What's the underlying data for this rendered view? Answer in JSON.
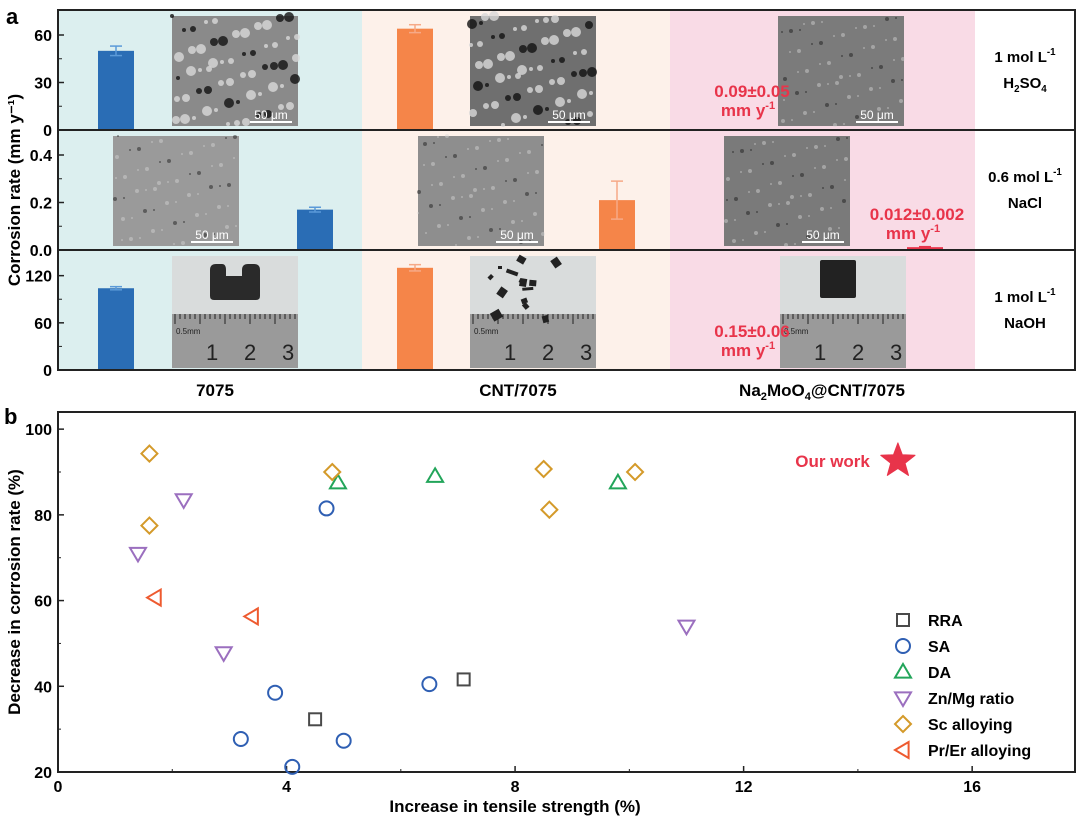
{
  "chart_data": [
    {
      "panel": "a",
      "type": "bar",
      "ylabel": "Corrosion rate (mm y⁻¹)",
      "categories": [
        "7075",
        "CNT/7075",
        "Na2MoO4@CNT/7075"
      ],
      "category_labels": [
        {
          "main": "7075"
        },
        {
          "main": "CNT/7075"
        },
        {
          "parts": [
            [
              "Na",
              ""
            ],
            [
              "2",
              "sub"
            ],
            [
              "MoO",
              ""
            ],
            [
              "4",
              "sub"
            ],
            [
              "@CNT/7075",
              ""
            ]
          ]
        }
      ],
      "band_colors": [
        "#dcefef",
        "#fdf1ea",
        "#f9dbe6",
        "#ffffff"
      ],
      "bar_colors": [
        "#2a6db5",
        "#f58549"
      ],
      "rows": [
        {
          "condition_line1": "1 mol L",
          "condition_line1_sup": "-1",
          "condition_line2_parts": [
            [
              "H",
              ""
            ],
            [
              "2",
              "sub"
            ],
            [
              "SO",
              ""
            ],
            [
              "4",
              "sub"
            ]
          ],
          "ylim": [
            0,
            72
          ],
          "yticks": [
            0,
            30,
            60
          ],
          "ytick_labels": [
            "0",
            "30",
            "60"
          ],
          "bars": [
            {
              "category": "7075",
              "value": 50,
              "error": 3
            },
            {
              "category": "CNT/7075",
              "value": 64,
              "error": 2.5
            }
          ],
          "annotation": {
            "category": "Na2MoO4@CNT/7075",
            "line1": "0.09±0.05",
            "line2": "mm y",
            "sup": "-1"
          },
          "sem_scale_labels": [
            "50 μm",
            "50 μm",
            "50 μm"
          ]
        },
        {
          "condition_line1": "0.6 mol L",
          "condition_line1_sup": "-1",
          "condition_line2_parts": [
            [
              "NaCl",
              ""
            ]
          ],
          "ylim": [
            0,
            0.48
          ],
          "yticks": [
            0,
            0.2,
            0.4
          ],
          "ytick_labels": [
            "0.0",
            "0.2",
            "0.4"
          ],
          "bars": [
            {
              "category": "7075",
              "value": 0.17,
              "error": 0.01
            },
            {
              "category": "CNT/7075",
              "value": 0.21,
              "error": 0.08
            },
            {
              "category": "Na2MoO4@CNT/7075",
              "value": 0.012,
              "error": 0.002
            }
          ],
          "annotation": {
            "category": "Na2MoO4@CNT/7075",
            "line1": "0.012±0.002",
            "line2": "mm y",
            "sup": "-1"
          },
          "sem_scale_labels": [
            "50 μm",
            "50 μm",
            "50 μm"
          ]
        },
        {
          "condition_line1": "1 mol L",
          "condition_line1_sup": "-1",
          "condition_line2_parts": [
            [
              "NaOH",
              ""
            ]
          ],
          "ylim": [
            0,
            145
          ],
          "yticks": [
            0,
            60,
            120
          ],
          "ytick_labels": [
            "0",
            "60",
            "120"
          ],
          "bars": [
            {
              "category": "7075",
              "value": 104,
              "error": 2
            },
            {
              "category": "CNT/7075",
              "value": 130,
              "error": 4
            }
          ],
          "annotation": {
            "category": "Na2MoO4@CNT/7075",
            "line1": "0.15±0.06",
            "line2": "mm y",
            "sup": "-1"
          },
          "ruler_labels": [
            "0.5mm",
            "1",
            "2",
            "3"
          ]
        }
      ],
      "annotation_color": "#e8344a"
    },
    {
      "panel": "b",
      "type": "scatter",
      "xlabel": "Increase in tensile strength (%)",
      "ylabel": "Decrease in corrosion rate (%)",
      "xlim": [
        0,
        17.8
      ],
      "ylim": [
        20,
        104
      ],
      "xticks": [
        0,
        4,
        8,
        12,
        16
      ],
      "yticks": [
        20,
        40,
        60,
        80,
        100
      ],
      "x_minor_ticks": [
        2,
        6,
        10,
        14
      ],
      "y_minor_ticks": [
        30,
        50,
        70,
        90
      ],
      "legend_position": "bottom-right",
      "series": [
        {
          "name": "RRA",
          "marker": "square",
          "color": "#4a4a4a",
          "points": [
            [
              4.5,
              32.3
            ],
            [
              7.1,
              41.6
            ]
          ]
        },
        {
          "name": "SA",
          "marker": "circle",
          "color": "#2f5fb3",
          "points": [
            [
              3.2,
              27.7
            ],
            [
              3.8,
              38.5
            ],
            [
              4.1,
              21.2
            ],
            [
              5.0,
              27.3
            ],
            [
              4.7,
              81.5
            ],
            [
              6.5,
              40.5
            ]
          ]
        },
        {
          "name": "DA",
          "marker": "triangle-up",
          "color": "#22a55a",
          "points": [
            [
              4.9,
              87.5
            ],
            [
              6.6,
              89.0
            ],
            [
              9.8,
              87.5
            ]
          ]
        },
        {
          "name": "Zn/Mg ratio",
          "marker": "triangle-down",
          "color": "#9b6fbf",
          "points": [
            [
              1.4,
              71.0
            ],
            [
              2.2,
              83.5
            ],
            [
              2.9,
              47.8
            ],
            [
              11.0,
              54.0
            ]
          ]
        },
        {
          "name": "Sc alloying",
          "marker": "diamond",
          "color": "#d49a2a",
          "points": [
            [
              1.6,
              94.3
            ],
            [
              1.6,
              77.5
            ],
            [
              4.8,
              90.0
            ],
            [
              8.5,
              90.7
            ],
            [
              8.6,
              81.2
            ],
            [
              10.1,
              90.0
            ]
          ]
        },
        {
          "name": "Pr/Er alloying",
          "marker": "triangle-left",
          "color": "#ee5a2f",
          "points": [
            [
              1.7,
              60.7
            ],
            [
              3.4,
              56.3
            ]
          ]
        }
      ],
      "highlight": {
        "label": "Our work",
        "marker": "star",
        "color": "#e8344a",
        "point": [
          14.7,
          92.6
        ]
      }
    }
  ]
}
